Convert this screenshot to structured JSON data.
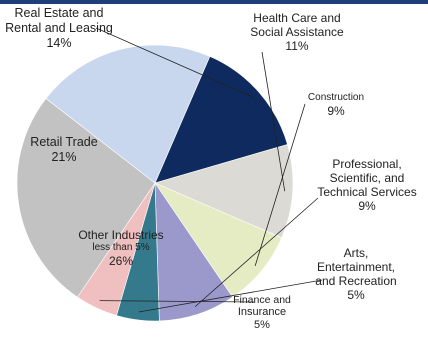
{
  "chart_data": {
    "type": "pie",
    "start_angle_deg": -66.6,
    "direction": "clockwise",
    "slices": [
      {
        "key": "real_estate",
        "lines": [
          "Real Estate and",
          "Rental and Leasing"
        ],
        "pct_label": "14%",
        "value": 14,
        "color": "#0e2a5e"
      },
      {
        "key": "health_care",
        "lines": [
          "Health Care and",
          "Social Assistance"
        ],
        "pct_label": "11%",
        "value": 11,
        "color": "#dcdad5"
      },
      {
        "key": "construction",
        "lines": [
          "Construction"
        ],
        "pct_label": "9%",
        "value": 9,
        "color": "#e5ecc4"
      },
      {
        "key": "professional",
        "lines": [
          "Professional,",
          "Scientific, and",
          "Technical Services"
        ],
        "pct_label": "9%",
        "value": 9,
        "color": "#9b98cc"
      },
      {
        "key": "arts",
        "lines": [
          "Arts,",
          "Entertainment,",
          "and Recreation"
        ],
        "pct_label": "5%",
        "value": 5,
        "color": "#347a8c"
      },
      {
        "key": "finance",
        "lines": [
          "Finance and",
          "Insurance"
        ],
        "pct_label": "5%",
        "value": 5,
        "color": "#f0bfc0"
      },
      {
        "key": "other",
        "lines": [
          "Other Industries",
          "less than 5%"
        ],
        "pct_label": "26%",
        "value": 26,
        "color": "#c2c2c2"
      },
      {
        "key": "retail",
        "lines": [
          "Retail Trade"
        ],
        "pct_label": "21%",
        "value": 21,
        "color": "#c8d7ee"
      }
    ]
  }
}
